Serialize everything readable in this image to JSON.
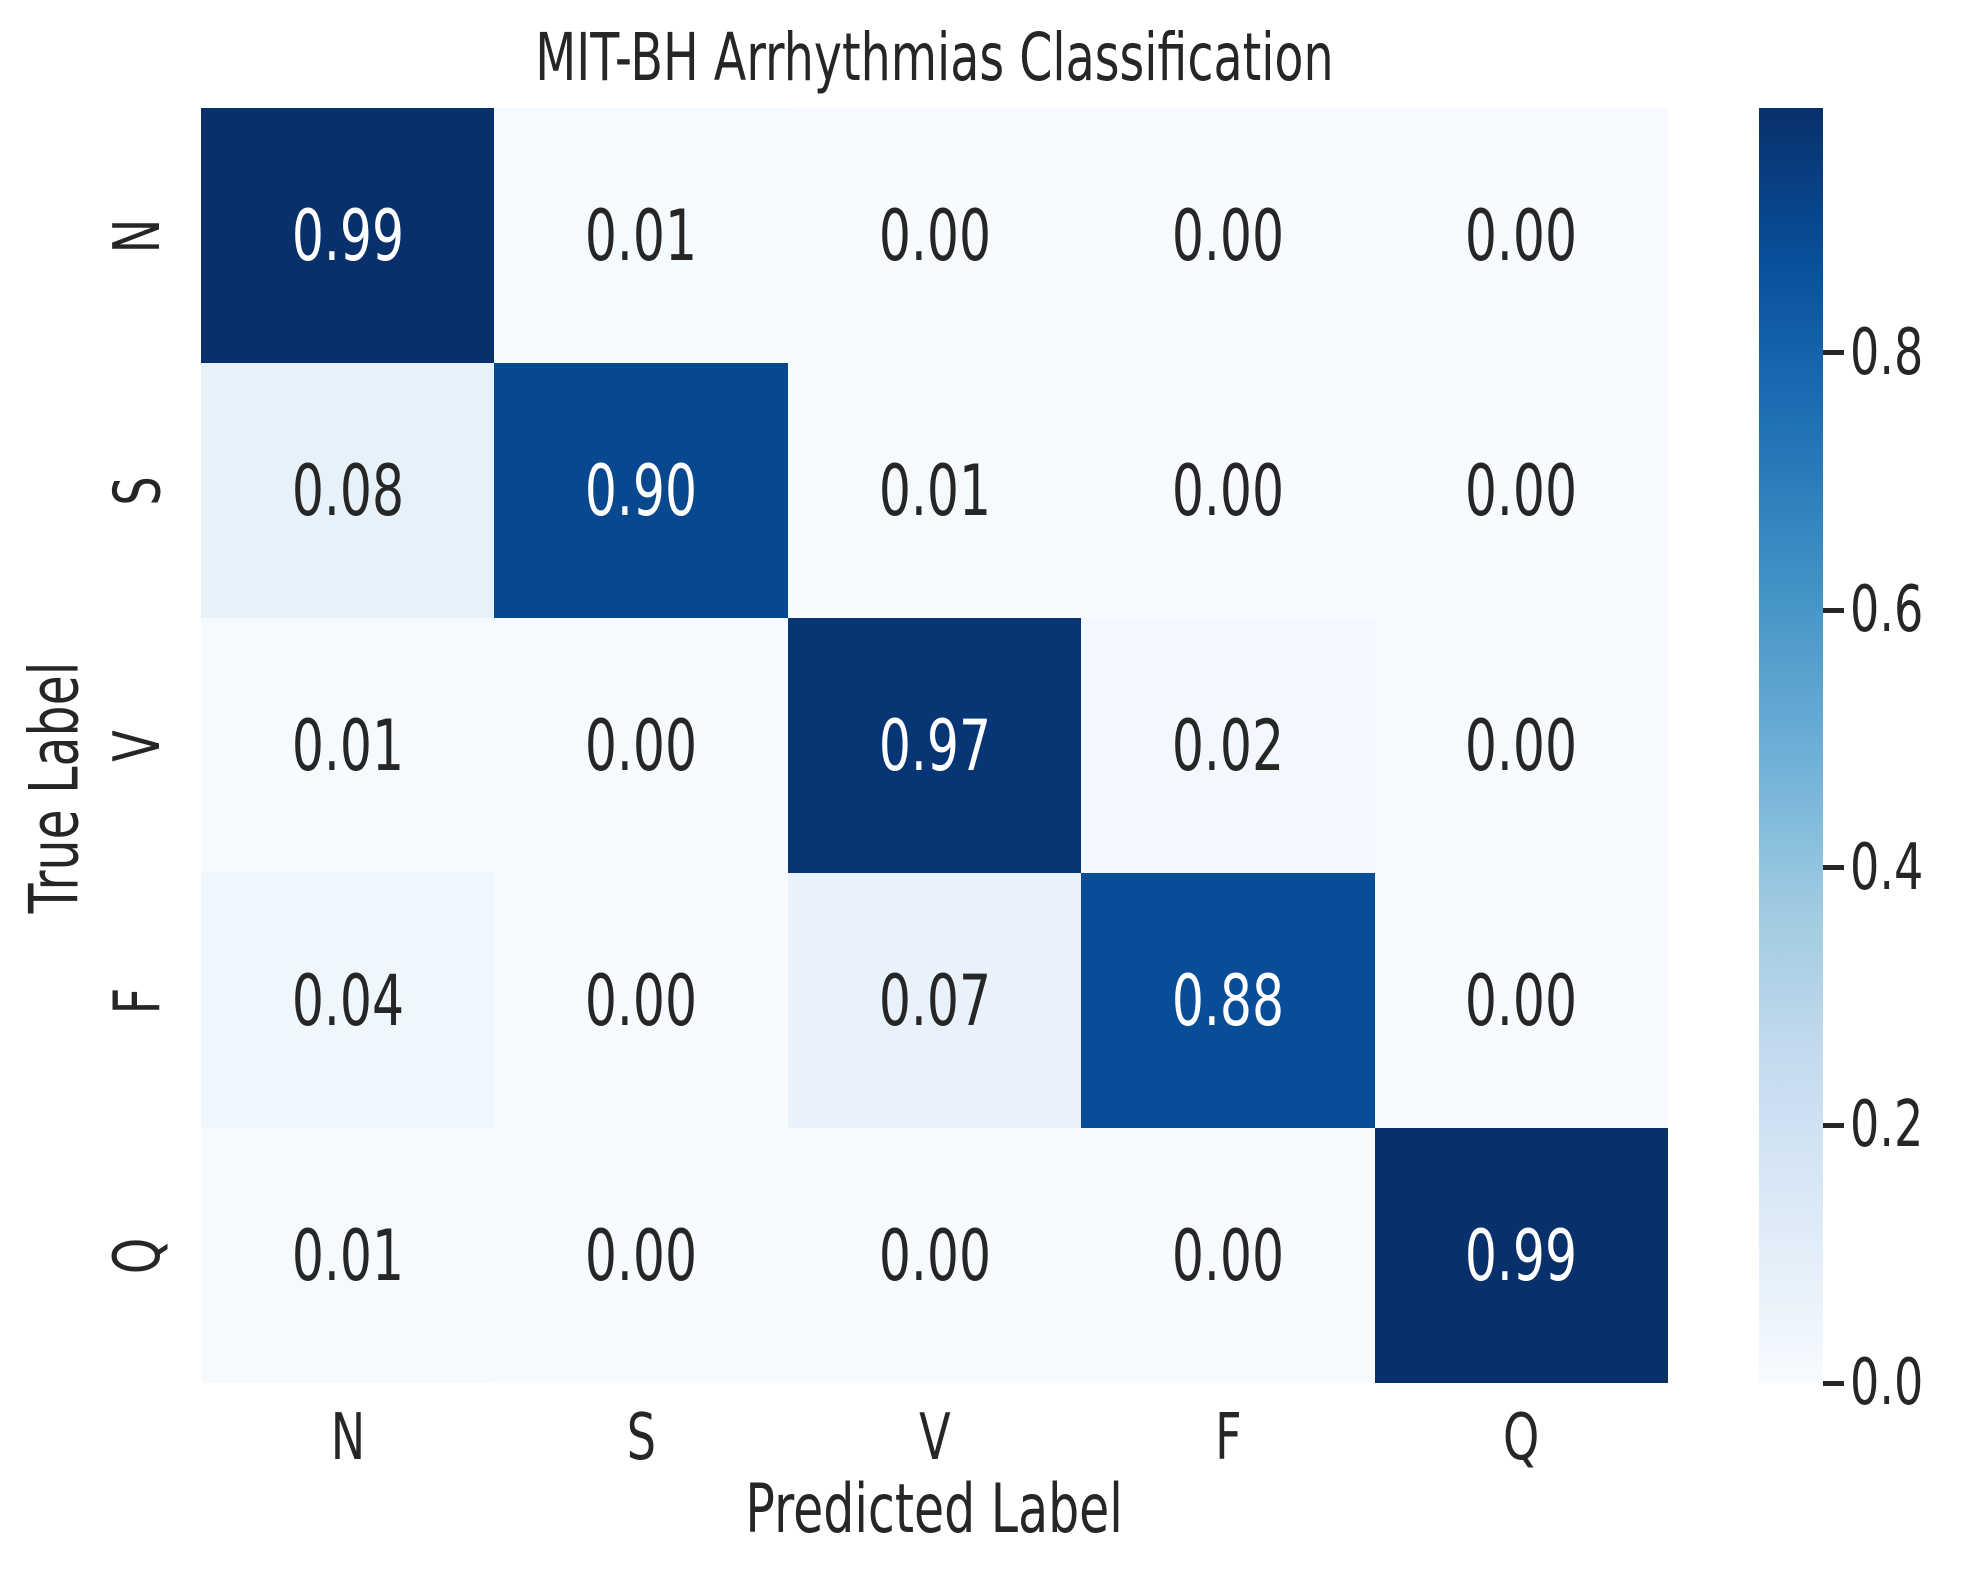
{
  "figure": {
    "background": "#ffffff",
    "text_color": "#262626",
    "annotation_light_text": "#ffffff"
  },
  "chart_data": {
    "type": "heatmap",
    "title": "MIT-BH Arrhythmias Classification",
    "xlabel": "Predicted Label",
    "ylabel": "True Label",
    "x_categories": [
      "N",
      "S",
      "V",
      "F",
      "Q"
    ],
    "y_categories": [
      "N",
      "S",
      "V",
      "F",
      "Q"
    ],
    "matrix": [
      [
        0.99,
        0.01,
        0.0,
        0.0,
        0.0
      ],
      [
        0.08,
        0.9,
        0.01,
        0.0,
        0.0
      ],
      [
        0.01,
        0.0,
        0.97,
        0.02,
        0.0
      ],
      [
        0.04,
        0.0,
        0.07,
        0.88,
        0.0
      ],
      [
        0.01,
        0.0,
        0.0,
        0.0,
        0.99
      ]
    ],
    "annotations": true,
    "value_decimals": 2,
    "vmin": 0.0,
    "vmax": 0.99,
    "grid": false,
    "colormap": {
      "name": "Blues",
      "anchors": [
        "#f7fbff",
        "#deebf7",
        "#c6dbef",
        "#9ecae1",
        "#6baed6",
        "#4292c6",
        "#2171b5",
        "#08519c",
        "#08306b"
      ]
    },
    "colorbar": {
      "position": "right",
      "ticks": [
        0.0,
        0.2,
        0.4,
        0.6,
        0.8
      ],
      "tick_labels": [
        "0.0",
        "0.2",
        "0.4",
        "0.6",
        "0.8"
      ]
    }
  }
}
